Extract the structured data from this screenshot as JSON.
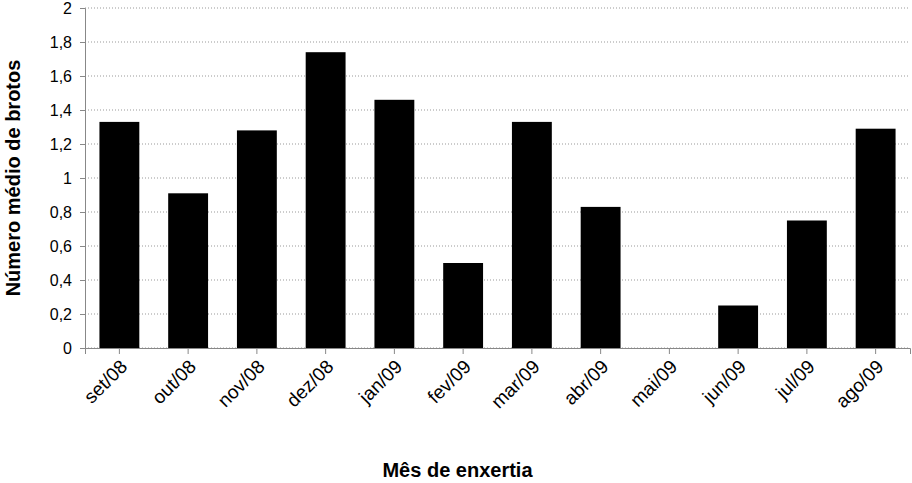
{
  "chart_data": {
    "type": "bar",
    "xlabel": "Mês de enxertia",
    "ylabel": "Número médio de brotos",
    "categories": [
      "set/08",
      "out/08",
      "nov/08",
      "dez/08",
      "jan/09",
      "fev/09",
      "mar/09",
      "abr/09",
      "mai/09",
      "jun/09",
      "jul/09",
      "ago/09"
    ],
    "values": [
      1.33,
      0.91,
      1.28,
      1.74,
      1.46,
      0.5,
      1.33,
      0.83,
      0,
      0.25,
      0.75,
      1.29
    ],
    "color": "#000000",
    "ylim": [
      0,
      2
    ],
    "yticks": [
      0,
      {
        "value": 0.2,
        "label": "0,2"
      },
      {
        "value": 0.4,
        "label": "0,4"
      },
      {
        "value": 0.6,
        "label": "0,6"
      },
      {
        "value": 0.8,
        "label": "0,8"
      },
      1,
      {
        "value": 1.2,
        "label": "1,2"
      },
      {
        "value": 1.4,
        "label": "1,4"
      },
      {
        "value": 1.6,
        "label": "1,6"
      },
      {
        "value": 1.8,
        "label": "1,8"
      },
      2
    ],
    "grid": true
  }
}
